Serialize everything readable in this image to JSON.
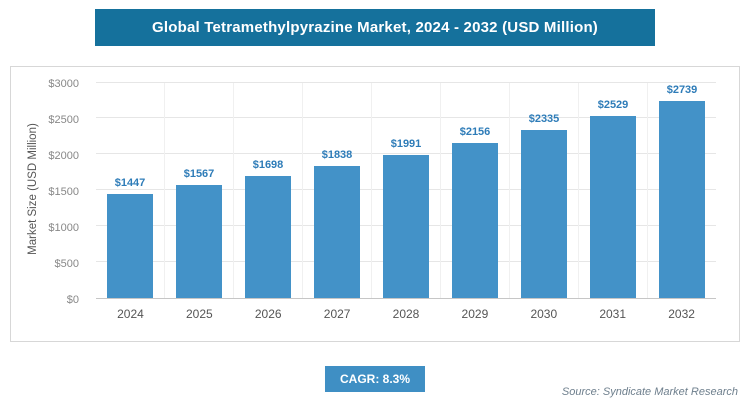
{
  "chart_data": {
    "type": "bar",
    "title": "Global Tetramethylpyrazine Market, 2024 - 2032 (USD Million)",
    "categories": [
      "2024",
      "2025",
      "2026",
      "2027",
      "2028",
      "2029",
      "2030",
      "2031",
      "2032"
    ],
    "values": [
      1447,
      1567,
      1698,
      1838,
      1991,
      2156,
      2335,
      2529,
      2739
    ],
    "bar_labels": [
      "$1447",
      "$1567",
      "$1698",
      "$1838",
      "$1991",
      "$2156",
      "$2335",
      "$2529",
      "$2739"
    ],
    "xlabel": "",
    "ylabel": "Market Size (USD Million)",
    "ylim": [
      0,
      3000
    ],
    "y_ticks": [
      {
        "value": 0,
        "label": "$0"
      },
      {
        "value": 500,
        "label": "$500"
      },
      {
        "value": 1000,
        "label": "$1000"
      },
      {
        "value": 1500,
        "label": "$1500"
      },
      {
        "value": 2000,
        "label": "$2000"
      },
      {
        "value": 2500,
        "label": "$2500"
      },
      {
        "value": 3000,
        "label": "$3000"
      }
    ],
    "grid": "horizontal",
    "legend": "none"
  },
  "footer": {
    "cagr_label": "CAGR: 8.3%",
    "source": "Source: Syndicate Market Research"
  },
  "colors": {
    "title_bg": "#15719c",
    "bar": "#4392c8",
    "bar_label": "#2e7cb8",
    "badge_bg": "#3f8fc4",
    "grid": "#e6e6e6",
    "axis_text": "#888888",
    "source_text": "#6e7f8d"
  }
}
